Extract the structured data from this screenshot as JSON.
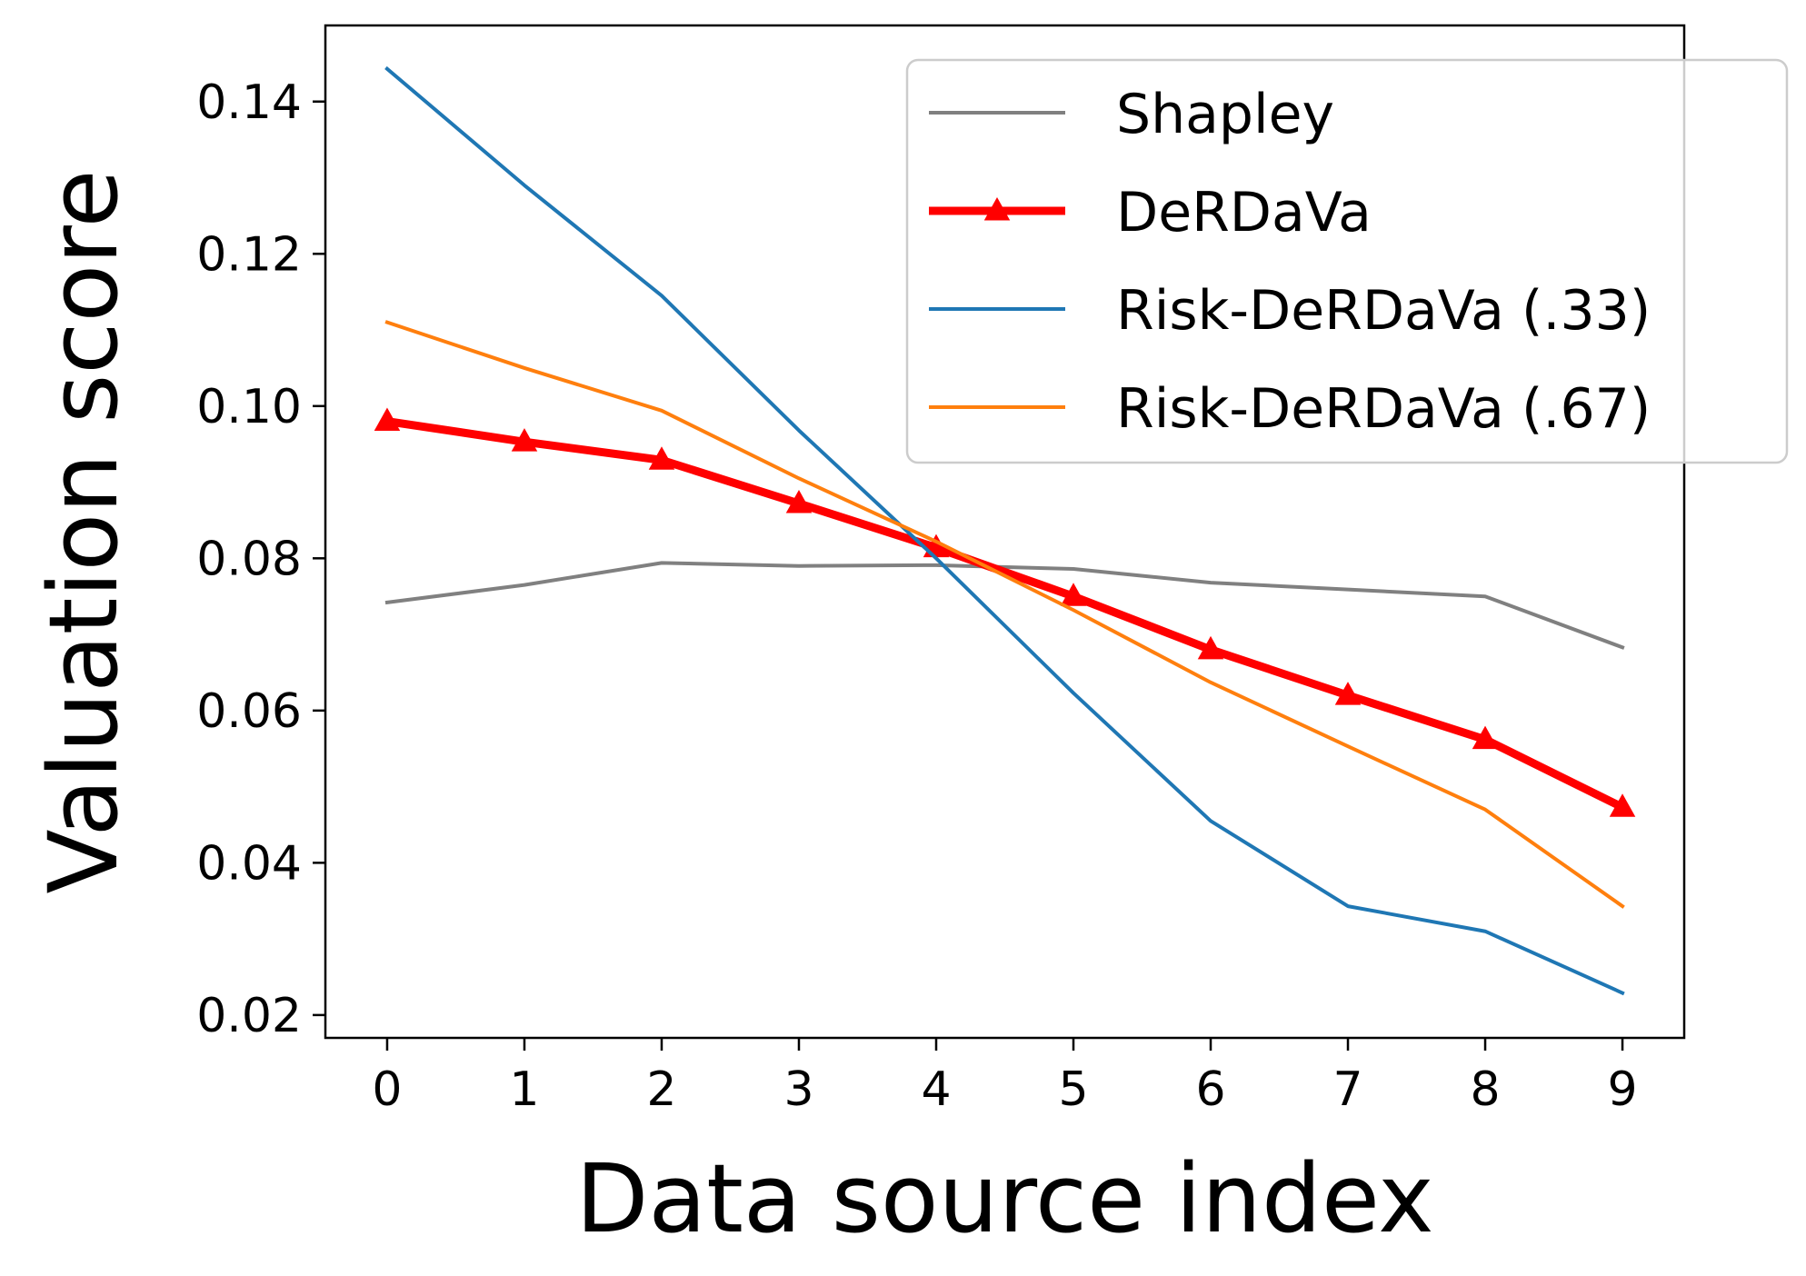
{
  "chart_data": {
    "type": "line",
    "title": "",
    "xlabel": "Data source index",
    "ylabel": "Valuation score",
    "x": [
      0,
      1,
      2,
      3,
      4,
      5,
      6,
      7,
      8,
      9
    ],
    "xlim": [
      -0.45,
      9.45
    ],
    "ylim": [
      0.017,
      0.15
    ],
    "xticks": [
      "0",
      "1",
      "2",
      "3",
      "4",
      "5",
      "6",
      "7",
      "8",
      "9"
    ],
    "yticks": [
      0.02,
      0.04,
      0.06,
      0.08,
      0.1,
      0.12,
      0.14
    ],
    "ytick_labels": [
      "0.02",
      "0.04",
      "0.06",
      "0.08",
      "0.10",
      "0.12",
      "0.14"
    ],
    "grid": false,
    "legend_position": "top-right",
    "series": [
      {
        "name": "Shapley",
        "color": "#808080",
        "marker": "none",
        "line_weight": "normal",
        "values": [
          0.0742,
          0.0765,
          0.0794,
          0.079,
          0.0791,
          0.0786,
          0.0768,
          0.0759,
          0.075,
          0.0683
        ]
      },
      {
        "name": "DeRDaVa",
        "color": "#ff0000",
        "marker": "triangle",
        "line_weight": "bold",
        "values": [
          0.098,
          0.0953,
          0.0929,
          0.0872,
          0.0814,
          0.075,
          0.068,
          0.062,
          0.0562,
          0.0473
        ]
      },
      {
        "name": "Risk-DeRDaVa (.33)",
        "color": "#1f77b4",
        "marker": "none",
        "line_weight": "normal",
        "values": [
          0.1443,
          0.129,
          0.1145,
          0.0968,
          0.08,
          0.0623,
          0.0455,
          0.0343,
          0.031,
          0.0229
        ]
      },
      {
        "name": "Risk-DeRDaVa (.67)",
        "color": "#ff7f0e",
        "marker": "none",
        "line_weight": "normal",
        "values": [
          0.111,
          0.105,
          0.0994,
          0.0905,
          0.0822,
          0.0732,
          0.0637,
          0.0553,
          0.047,
          0.0343
        ]
      }
    ]
  }
}
